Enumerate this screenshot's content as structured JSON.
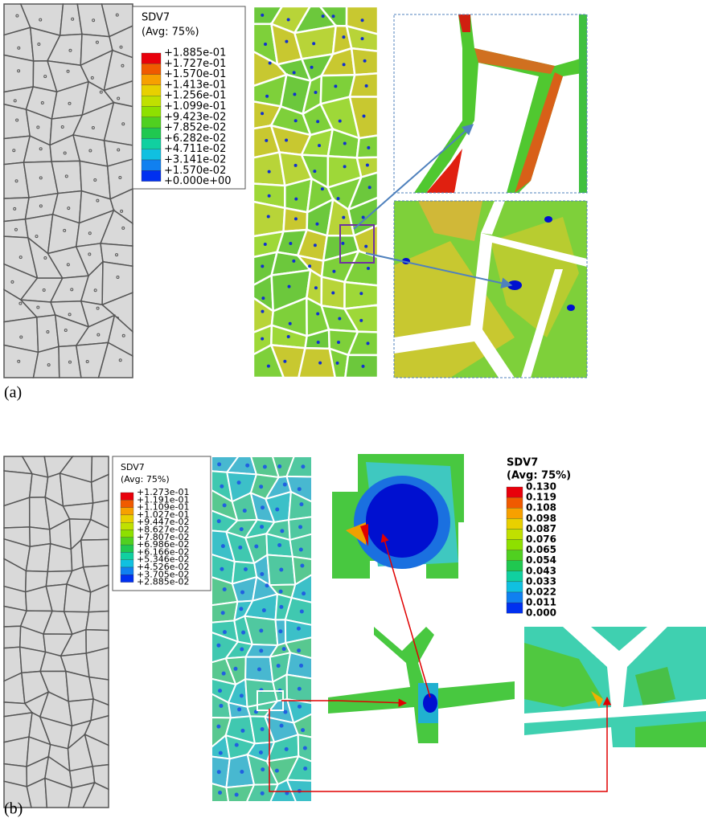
{
  "panel_a": {
    "label": "(a)",
    "legend": {
      "title": "SDV7",
      "subtitle": "(Avg: 75%)",
      "labels": [
        "+1.885e-01",
        "+1.727e-01",
        "+1.570e-01",
        "+1.413e-01",
        "+1.256e-01",
        "+1.099e-01",
        "+9.423e-02",
        "+7.852e-02",
        "+6.282e-02",
        "+4.711e-02",
        "+3.141e-02",
        "+1.570e-02",
        "+0.000e+00"
      ]
    }
  },
  "panel_b": {
    "label": "(b)",
    "legend": {
      "title": "SDV7",
      "subtitle": "(Avg: 75%)",
      "labels": [
        "+1.273e-01",
        "+1.191e-01",
        "+1.109e-01",
        "+1.027e-01",
        "+9.447e-02",
        "+8.627e-02",
        "+7.807e-02",
        "+6.986e-02",
        "+6.166e-02",
        "+5.346e-02",
        "+4.526e-02",
        "+3.705e-02",
        "+2.885e-02"
      ]
    },
    "legend_2": {
      "title": "SDV7",
      "subtitle": "(Avg: 75%)",
      "labels": [
        "0.130",
        "0.119",
        "0.108",
        "0.098",
        "0.087",
        "0.076",
        "0.065",
        "0.054",
        "0.043",
        "0.033",
        "0.022",
        "0.011",
        "0.000"
      ]
    }
  }
}
